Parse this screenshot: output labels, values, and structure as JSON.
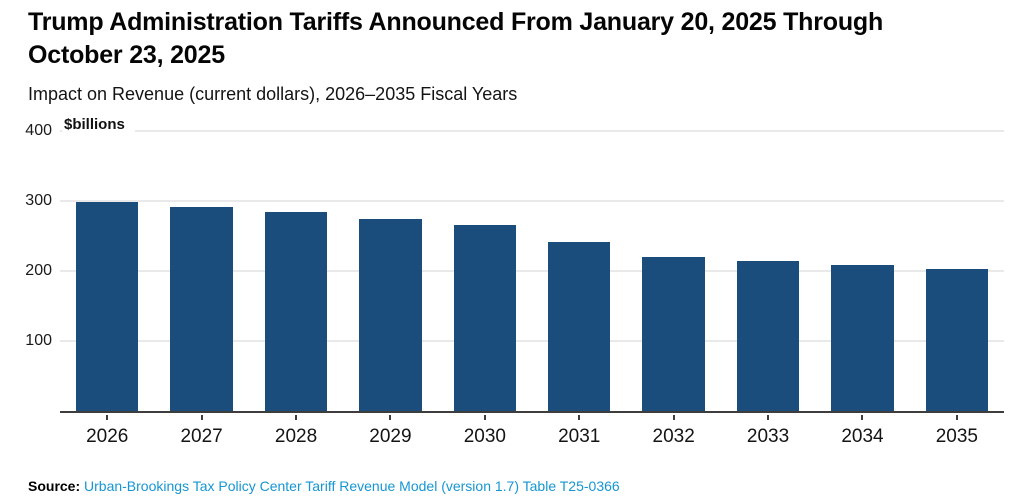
{
  "header": {
    "title": "Trump Administration Tariffs Announced From January 20, 2025 Through October 23, 2025",
    "subtitle": "Impact on Revenue (current dollars), 2026–2035 Fiscal Years"
  },
  "chart_data": {
    "type": "bar",
    "title": "Trump Administration Tariffs Announced From January 20, 2025 Through October 23, 2025",
    "subtitle": "Impact on Revenue (current dollars), 2026–2035 Fiscal Years",
    "unit_label": "$billions",
    "categories": [
      "2026",
      "2027",
      "2028",
      "2029",
      "2030",
      "2031",
      "2032",
      "2033",
      "2034",
      "2035"
    ],
    "values": [
      299,
      292,
      284,
      274,
      266,
      241,
      220,
      215,
      209,
      203
    ],
    "xlabel": "",
    "ylabel": "$billions",
    "ylim": [
      0,
      400
    ],
    "yticks": [
      100,
      200,
      300,
      400
    ],
    "grid": true,
    "legend": false
  },
  "source": {
    "label": "Source:",
    "link_text": "Urban-Brookings Tax Policy Center Tariff Revenue Model (version 1.7) Table T25-0366"
  },
  "colors": {
    "bar": "#1b4d7c",
    "gridline": "#e9e9e9",
    "axis": "#3d3d3d",
    "link": "#1696d2",
    "title": "#050505"
  }
}
